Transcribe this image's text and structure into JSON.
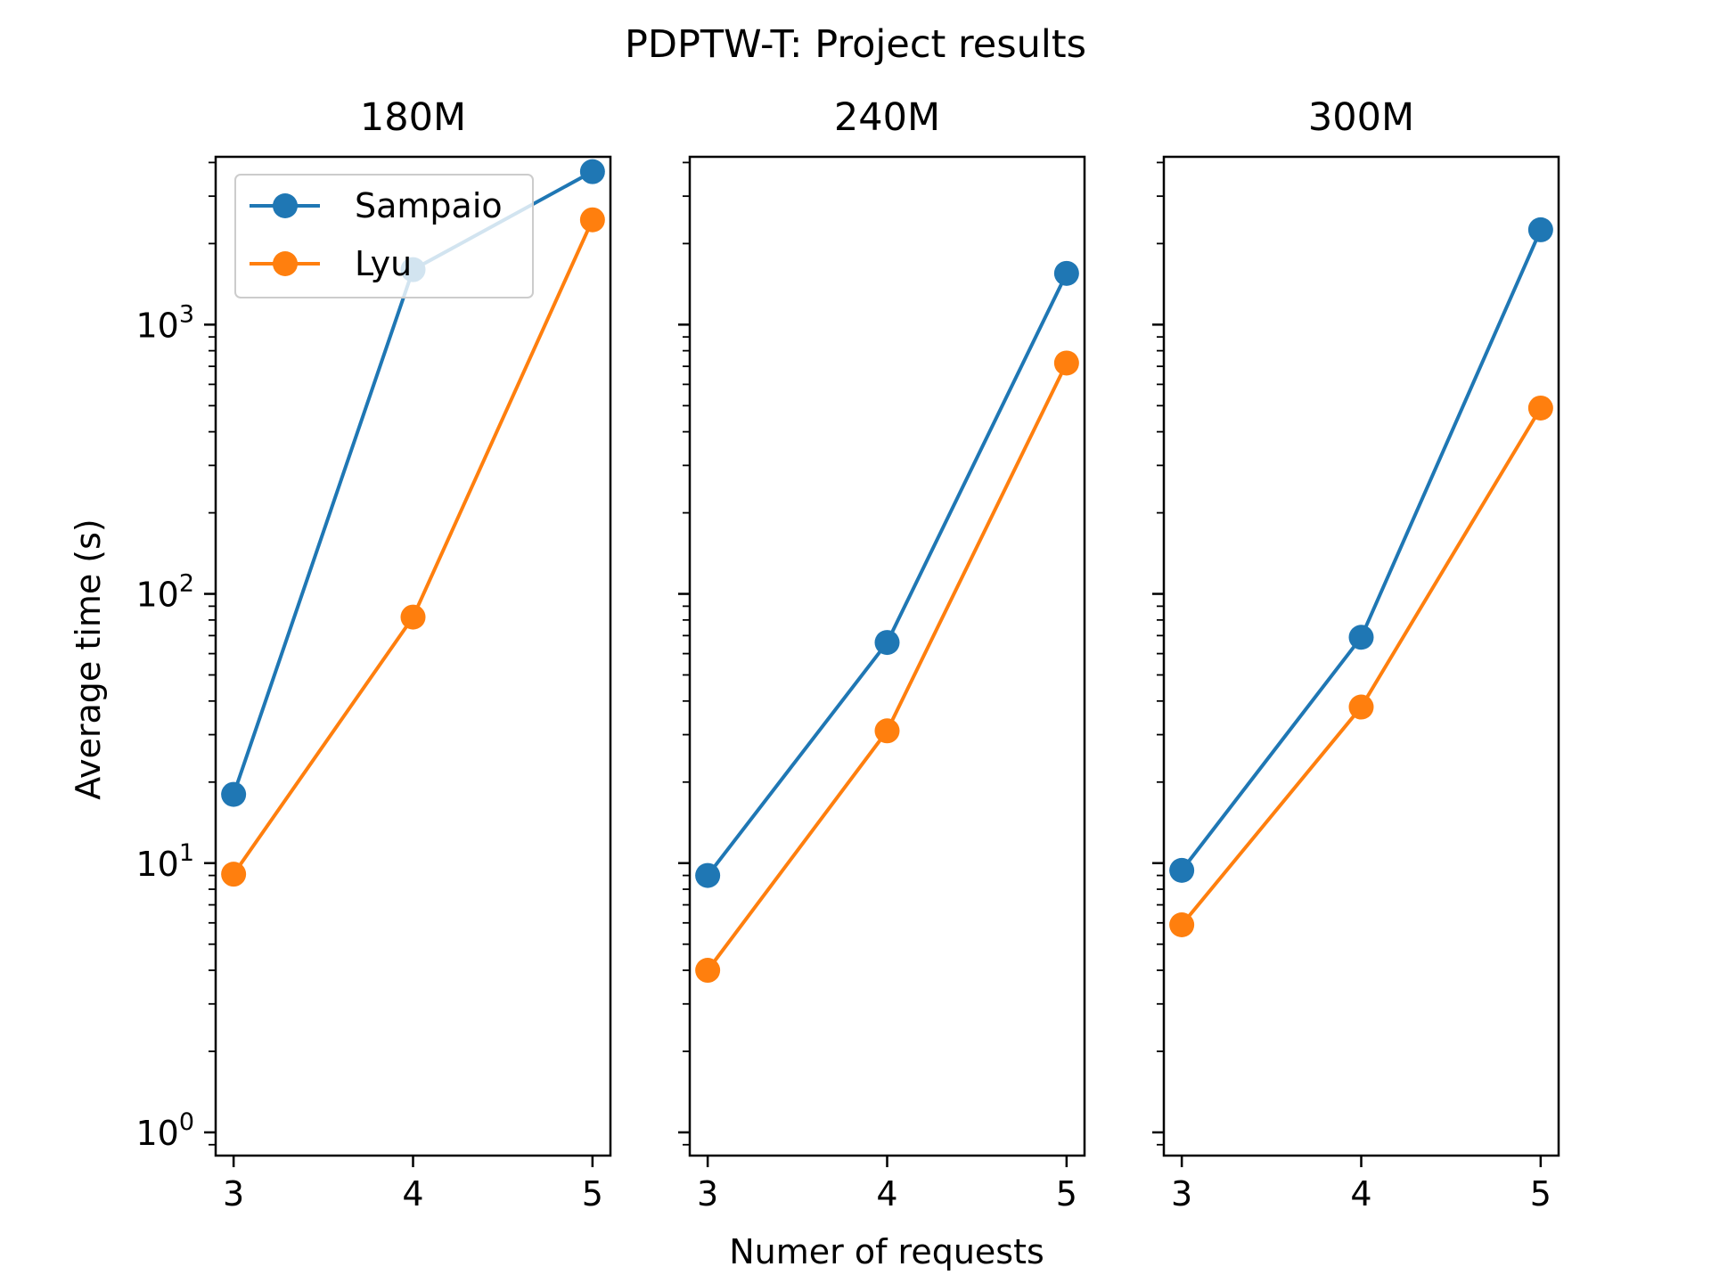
{
  "chart_data": {
    "type": "line",
    "title": "PDPTW-T: Project results",
    "xlabel": "Numer of requests",
    "ylabel": "Average time (s)",
    "yscale": "log",
    "ylim": [
      0.82,
      4200
    ],
    "xlim": [
      2.9,
      5.1
    ],
    "y_ticks": [
      {
        "value": 1,
        "base": "10",
        "exp": "0"
      },
      {
        "value": 10,
        "base": "10",
        "exp": "1"
      },
      {
        "value": 100,
        "base": "10",
        "exp": "2"
      },
      {
        "value": 1000,
        "base": "10",
        "exp": "3"
      }
    ],
    "x": [
      3,
      4,
      5
    ],
    "x_tick_labels": [
      "3",
      "4",
      "5"
    ],
    "grid": false,
    "legend": {
      "placement": "upper-left",
      "panel": 0
    },
    "series_styles": [
      {
        "name": "Sampaio",
        "color": "#1f77b4"
      },
      {
        "name": "Lyu",
        "color": "#ff7f0e"
      }
    ],
    "panels": [
      {
        "title": "180M",
        "series": [
          {
            "name": "Sampaio",
            "values": [
              18,
              1600,
              3700
            ]
          },
          {
            "name": "Lyu",
            "values": [
              9.1,
              82,
              2450
            ]
          }
        ]
      },
      {
        "title": "240M",
        "series": [
          {
            "name": "Sampaio",
            "values": [
              9.0,
              66,
              1550
            ]
          },
          {
            "name": "Lyu",
            "values": [
              4.0,
              31,
              720
            ]
          }
        ]
      },
      {
        "title": "300M",
        "series": [
          {
            "name": "Sampaio",
            "values": [
              9.4,
              69,
              2250
            ]
          },
          {
            "name": "Lyu",
            "values": [
              5.9,
              38,
              490
            ]
          }
        ]
      }
    ]
  }
}
